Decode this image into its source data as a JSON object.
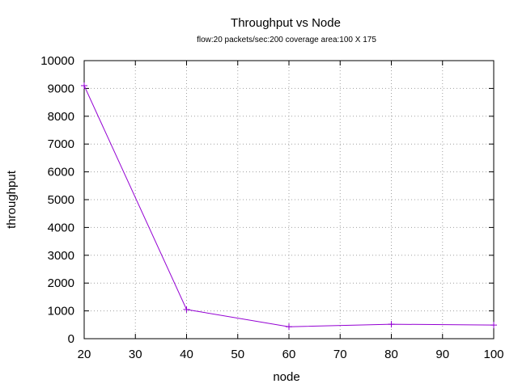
{
  "chart_data": {
    "type": "line",
    "title": "Throughput vs Node",
    "subtitle": "flow:20  packets/sec:200  coverage area:100 X 175",
    "xlabel": "node",
    "ylabel": "throughput",
    "xlim": [
      20,
      100
    ],
    "ylim": [
      0,
      10000
    ],
    "xticks": [
      20,
      30,
      40,
      50,
      60,
      70,
      80,
      90,
      100
    ],
    "yticks": [
      0,
      1000,
      2000,
      3000,
      4000,
      5000,
      6000,
      7000,
      8000,
      9000,
      10000
    ],
    "grid": true,
    "series": [
      {
        "color": "#9400d3",
        "marker": "plus",
        "x": [
          20,
          40,
          60,
          80,
          100
        ],
        "y": [
          9100,
          1050,
          430,
          520,
          490
        ]
      }
    ]
  }
}
